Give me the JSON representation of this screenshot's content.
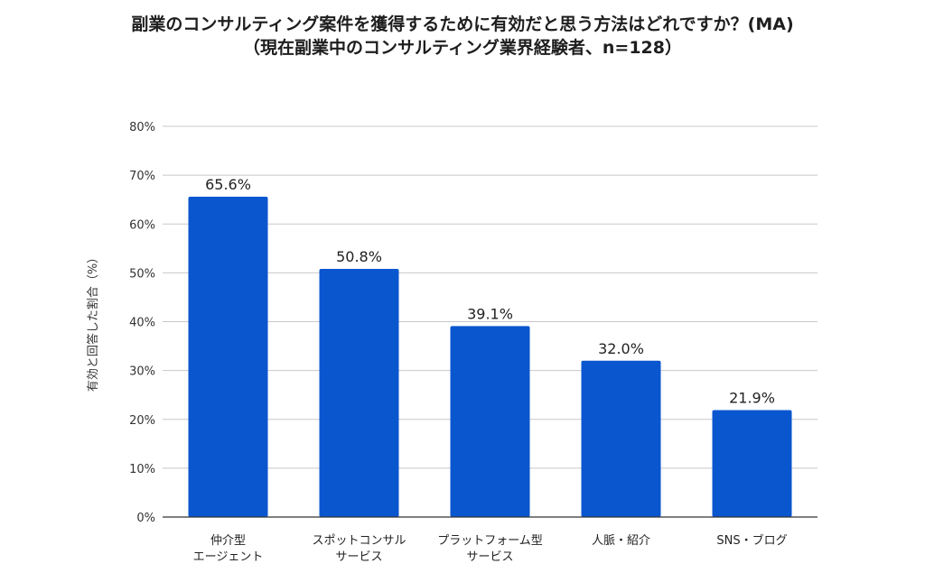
{
  "chart_data": {
    "type": "bar",
    "title": "副業のコンサルティング案件を獲得するために有効だと思う方法はどれですか？(MA)",
    "subtitle": "（現在副業中のコンサルティング業界経験者、n=128）",
    "ylabel": "有効と回答した割合（%）",
    "xlabel": "",
    "ylim": [
      0,
      80
    ],
    "yticks": [
      0,
      10,
      20,
      30,
      40,
      50,
      60,
      70,
      80
    ],
    "ytick_labels": [
      "0%",
      "10%",
      "20%",
      "30%",
      "40%",
      "50%",
      "60%",
      "70%",
      "80%"
    ],
    "grid": true,
    "categories": [
      [
        "仲介型",
        "エージェント"
      ],
      [
        "スポットコンサル",
        "サービス"
      ],
      [
        "プラットフォーム型",
        "サービス"
      ],
      [
        "人脈・紹介"
      ],
      [
        "SNS・ブログ"
      ]
    ],
    "values": [
      65.6,
      50.8,
      39.1,
      32.0,
      21.9
    ],
    "data_labels": [
      "65.6%",
      "50.8%",
      "39.1%",
      "32.0%",
      "21.9%"
    ],
    "bar_color": "#0a56cf",
    "grid_color": "#c8c8c8"
  }
}
